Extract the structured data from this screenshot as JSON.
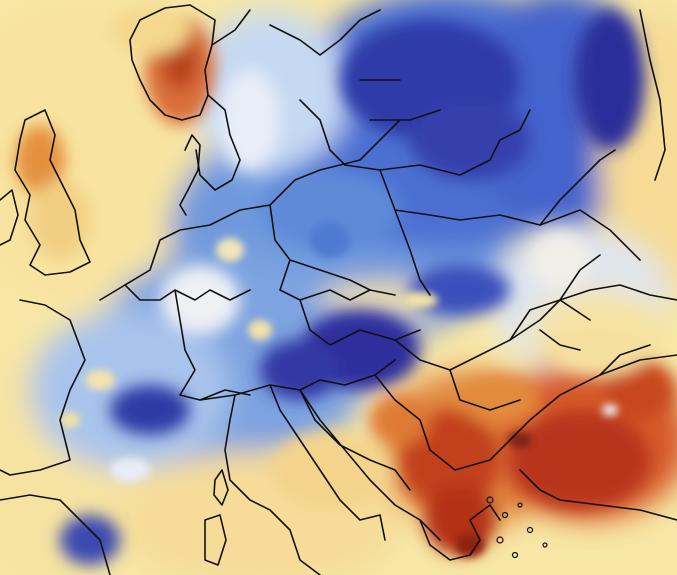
{
  "map": {
    "type": "temperature-anomaly-heatmap",
    "region": "Europe",
    "labels_visible": false,
    "palette": {
      "deep_blue": "#2a2f9e",
      "blue": "#3f6fd1",
      "light_blue": "#a9c7ee",
      "white": "#f3f1ef",
      "pale_yellow": "#f6e6a0",
      "orange": "#ec8a3b",
      "red": "#c7421d",
      "dark_red": "#9b1c12",
      "border": "#111111"
    }
  }
}
